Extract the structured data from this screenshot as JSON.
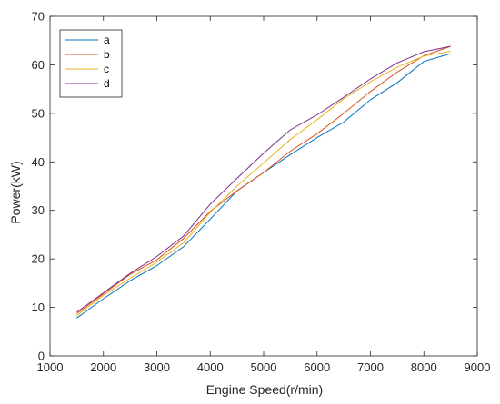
{
  "chart_data": {
    "type": "line",
    "title": "",
    "xlabel": "Engine Speed(r/min)",
    "ylabel": "Power(kW)",
    "xlim": [
      1000,
      9000
    ],
    "ylim": [
      0,
      70
    ],
    "xticks": [
      1000,
      2000,
      3000,
      4000,
      5000,
      6000,
      7000,
      8000,
      9000
    ],
    "yticks": [
      0,
      10,
      20,
      30,
      40,
      50,
      60,
      70
    ],
    "grid": false,
    "legend_position": "top-left",
    "x": [
      1500,
      2000,
      2500,
      3000,
      3500,
      4000,
      4500,
      5000,
      5500,
      6000,
      6500,
      7000,
      7500,
      8000,
      8500
    ],
    "series": [
      {
        "name": "a",
        "color": "#0072BD",
        "values": [
          7.8,
          11.8,
          15.5,
          18.6,
          22.5,
          28.2,
          34.0,
          37.8,
          41.5,
          45.0,
          48.2,
          52.8,
          56.3,
          60.7,
          62.3
        ]
      },
      {
        "name": "b",
        "color": "#D95319",
        "values": [
          8.7,
          12.8,
          16.8,
          19.8,
          24.2,
          29.8,
          34.0,
          37.8,
          42.2,
          45.8,
          50.0,
          54.5,
          58.5,
          61.9,
          63.8
        ]
      },
      {
        "name": "c",
        "color": "#EDB120",
        "values": [
          8.3,
          12.5,
          16.0,
          19.3,
          23.3,
          29.6,
          35.0,
          39.8,
          44.6,
          48.7,
          53.0,
          56.5,
          59.5,
          61.8,
          62.8
        ]
      },
      {
        "name": "d",
        "color": "#7E2F8E",
        "values": [
          9.0,
          13.0,
          17.0,
          20.5,
          24.7,
          31.3,
          36.6,
          41.8,
          46.6,
          49.7,
          53.3,
          57.1,
          60.4,
          62.7,
          63.8
        ]
      }
    ]
  }
}
